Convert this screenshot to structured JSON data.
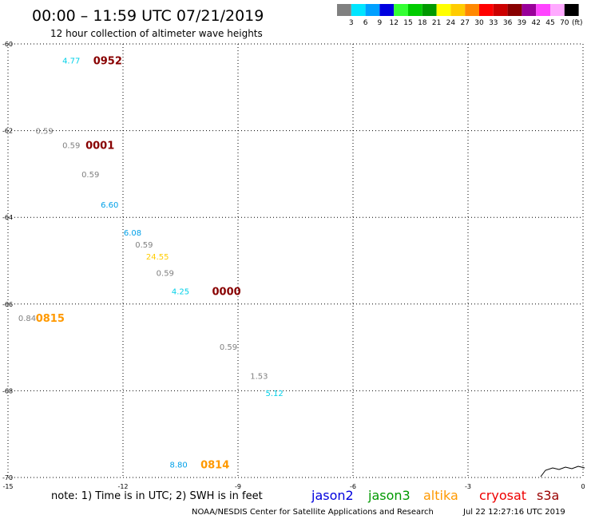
{
  "header": {
    "title": "00:00 – 11:59 UTC 07/21/2019",
    "subtitle": "12 hour collection of altimeter wave heights"
  },
  "legend": {
    "unit_label": "(ft)",
    "bins": [
      {
        "label": "3",
        "color": "#808080"
      },
      {
        "label": "6",
        "color": "#00e5ff"
      },
      {
        "label": "9",
        "color": "#00a0ff"
      },
      {
        "label": "12",
        "color": "#0000e0"
      },
      {
        "label": "15",
        "color": "#33ff33"
      },
      {
        "label": "18",
        "color": "#00cc00"
      },
      {
        "label": "21",
        "color": "#009900"
      },
      {
        "label": "24",
        "color": "#ffff00"
      },
      {
        "label": "27",
        "color": "#ffcc00"
      },
      {
        "label": "30",
        "color": "#ff8800"
      },
      {
        "label": "33",
        "color": "#ff0000"
      },
      {
        "label": "36",
        "color": "#cc0000"
      },
      {
        "label": "39",
        "color": "#880000"
      },
      {
        "label": "42",
        "color": "#990099"
      },
      {
        "label": "45",
        "color": "#ff44ff"
      },
      {
        "label": "70",
        "color": "#ffaaff"
      },
      {
        "label": "",
        "color": "#000000"
      }
    ]
  },
  "footer": {
    "note": "note: 1) Time is in UTC; 2) SWH is in feet",
    "satellites": [
      {
        "name": "jason2",
        "color": "#0000dd"
      },
      {
        "name": "jason3",
        "color": "#009900"
      },
      {
        "name": "altika",
        "color": "#ff9900"
      },
      {
        "name": "cryosat",
        "color": "#ee0000"
      },
      {
        "name": "s3a",
        "color": "#990000"
      }
    ],
    "credit": "NOAA/NESDIS Center for Satellite Applications and Research",
    "generated": "Jul 22 12:27:16 UTC 2019"
  },
  "chart_data": {
    "type": "scatter",
    "xlim": [
      -15,
      0
    ],
    "ylim": [
      -70,
      -60
    ],
    "x_ticks": [
      "-15",
      "-12",
      "-9",
      "-6",
      "-3",
      "0"
    ],
    "y_ticks": [
      "-60",
      "-62",
      "-64",
      "-66",
      "-68",
      "-70"
    ],
    "grid": true,
    "points": [
      {
        "lon": -13.35,
        "lat": -60.38,
        "label": "4.77",
        "color": "#00d0e8"
      },
      {
        "lon": -14.05,
        "lat": -62.0,
        "label": "0.59",
        "color": "#808080"
      },
      {
        "lon": -13.35,
        "lat": -62.33,
        "label": "0.59",
        "color": "#808080"
      },
      {
        "lon": -12.85,
        "lat": -63.0,
        "label": "0.59",
        "color": "#808080"
      },
      {
        "lon": -12.35,
        "lat": -63.7,
        "label": "6.60",
        "color": "#00a0e8"
      },
      {
        "lon": -11.75,
        "lat": -64.35,
        "label": "6.08",
        "color": "#00a0e8"
      },
      {
        "lon": -11.45,
        "lat": -64.62,
        "label": "0.59",
        "color": "#808080"
      },
      {
        "lon": -11.1,
        "lat": -64.9,
        "label": "24.55",
        "color": "#ffcc00"
      },
      {
        "lon": -10.9,
        "lat": -65.28,
        "label": "0.59",
        "color": "#808080"
      },
      {
        "lon": -10.5,
        "lat": -65.7,
        "label": "4.25",
        "color": "#00d0e8"
      },
      {
        "lon": -14.5,
        "lat": -66.32,
        "label": "0.84",
        "color": "#808080"
      },
      {
        "lon": -9.25,
        "lat": -66.98,
        "label": "0.59",
        "color": "#808080"
      },
      {
        "lon": -8.45,
        "lat": -67.65,
        "label": "1.53",
        "color": "#808080"
      },
      {
        "lon": -8.05,
        "lat": -68.05,
        "label": "5.12",
        "color": "#00d0e8"
      },
      {
        "lon": -10.55,
        "lat": -69.7,
        "label": "8.80",
        "color": "#00a0e8"
      }
    ],
    "times": [
      {
        "lon": -12.4,
        "lat": -60.38,
        "label": "0952",
        "color": "#880000"
      },
      {
        "lon": -12.6,
        "lat": -62.33,
        "label": "0001",
        "color": "#880000"
      },
      {
        "lon": -9.3,
        "lat": -65.7,
        "label": "0000",
        "color": "#880000"
      },
      {
        "lon": -13.9,
        "lat": -66.32,
        "label": "0815",
        "color": "#ff9900"
      },
      {
        "lon": -9.6,
        "lat": -69.7,
        "label": "0814",
        "color": "#ff9900"
      }
    ]
  }
}
